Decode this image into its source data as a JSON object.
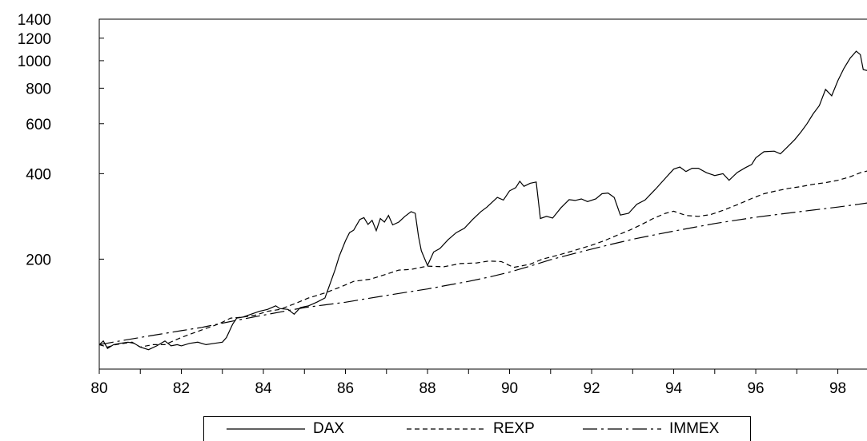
{
  "chart_data": {
    "type": "line",
    "title": "",
    "xlabel": "",
    "ylabel": "",
    "y_scale": "log",
    "xlim": [
      1980,
      1998.75
    ],
    "ylim": [
      82,
      1400
    ],
    "x_tick_labels": [
      "80",
      "82",
      "84",
      "86",
      "88",
      "90",
      "92",
      "94",
      "96",
      "98"
    ],
    "x_tick_values": [
      1980,
      1982,
      1984,
      1986,
      1988,
      1990,
      1992,
      1994,
      1996,
      1998
    ],
    "y_tick_labels": [
      "200",
      "400",
      "600",
      "800",
      "1000",
      "1200",
      "1400"
    ],
    "y_tick_values": [
      200,
      400,
      600,
      800,
      1000,
      1200,
      1400
    ],
    "legend_position": "bottom",
    "series": [
      {
        "name": "DAX",
        "style": "solid",
        "points": [
          [
            1980.0,
            100
          ],
          [
            1980.1,
            103
          ],
          [
            1980.2,
            97
          ],
          [
            1980.35,
            100
          ],
          [
            1980.5,
            101
          ],
          [
            1980.7,
            102
          ],
          [
            1980.85,
            101
          ],
          [
            1981.0,
            98
          ],
          [
            1981.2,
            96
          ],
          [
            1981.4,
            99
          ],
          [
            1981.6,
            103
          ],
          [
            1981.75,
            99
          ],
          [
            1981.9,
            100
          ],
          [
            1982.0,
            99
          ],
          [
            1982.2,
            101
          ],
          [
            1982.4,
            102
          ],
          [
            1982.6,
            100
          ],
          [
            1982.8,
            101
          ],
          [
            1983.0,
            102
          ],
          [
            1983.1,
            106
          ],
          [
            1983.25,
            118
          ],
          [
            1983.35,
            124
          ],
          [
            1983.5,
            125
          ],
          [
            1983.7,
            128
          ],
          [
            1983.9,
            131
          ],
          [
            1984.1,
            133
          ],
          [
            1984.3,
            137
          ],
          [
            1984.4,
            134
          ],
          [
            1984.6,
            133
          ],
          [
            1984.75,
            128
          ],
          [
            1984.9,
            135
          ],
          [
            1985.1,
            137
          ],
          [
            1985.3,
            141
          ],
          [
            1985.5,
            146
          ],
          [
            1985.6,
            160
          ],
          [
            1985.75,
            184
          ],
          [
            1985.85,
            205
          ],
          [
            1986.0,
            232
          ],
          [
            1986.1,
            248
          ],
          [
            1986.2,
            253
          ],
          [
            1986.35,
            276
          ],
          [
            1986.45,
            280
          ],
          [
            1986.55,
            265
          ],
          [
            1986.65,
            274
          ],
          [
            1986.75,
            252
          ],
          [
            1986.85,
            278
          ],
          [
            1986.95,
            270
          ],
          [
            1987.05,
            285
          ],
          [
            1987.15,
            264
          ],
          [
            1987.3,
            270
          ],
          [
            1987.45,
            283
          ],
          [
            1987.6,
            294
          ],
          [
            1987.7,
            290
          ],
          [
            1987.78,
            240
          ],
          [
            1987.85,
            214
          ],
          [
            1988.0,
            190
          ],
          [
            1988.15,
            212
          ],
          [
            1988.3,
            218
          ],
          [
            1988.5,
            234
          ],
          [
            1988.7,
            248
          ],
          [
            1988.9,
            257
          ],
          [
            1989.1,
            276
          ],
          [
            1989.3,
            294
          ],
          [
            1989.45,
            305
          ],
          [
            1989.55,
            315
          ],
          [
            1989.7,
            330
          ],
          [
            1989.85,
            323
          ],
          [
            1990.0,
            348
          ],
          [
            1990.15,
            357
          ],
          [
            1990.25,
            376
          ],
          [
            1990.35,
            361
          ],
          [
            1990.5,
            370
          ],
          [
            1990.65,
            374
          ],
          [
            1990.75,
            278
          ],
          [
            1990.9,
            283
          ],
          [
            1991.05,
            279
          ],
          [
            1991.25,
            303
          ],
          [
            1991.45,
            324
          ],
          [
            1991.6,
            322
          ],
          [
            1991.75,
            326
          ],
          [
            1991.9,
            319
          ],
          [
            1992.1,
            326
          ],
          [
            1992.25,
            340
          ],
          [
            1992.4,
            342
          ],
          [
            1992.55,
            330
          ],
          [
            1992.7,
            286
          ],
          [
            1992.9,
            290
          ],
          [
            1993.1,
            312
          ],
          [
            1993.3,
            323
          ],
          [
            1993.55,
            352
          ],
          [
            1993.8,
            386
          ],
          [
            1994.0,
            415
          ],
          [
            1994.15,
            422
          ],
          [
            1994.3,
            407
          ],
          [
            1994.45,
            418
          ],
          [
            1994.6,
            418
          ],
          [
            1994.8,
            403
          ],
          [
            1995.0,
            394
          ],
          [
            1995.2,
            400
          ],
          [
            1995.35,
            379
          ],
          [
            1995.55,
            404
          ],
          [
            1995.75,
            420
          ],
          [
            1995.9,
            431
          ],
          [
            1996.0,
            455
          ],
          [
            1996.2,
            478
          ],
          [
            1996.45,
            480
          ],
          [
            1996.6,
            470
          ],
          [
            1996.75,
            493
          ],
          [
            1996.95,
            527
          ],
          [
            1997.1,
            560
          ],
          [
            1997.25,
            600
          ],
          [
            1997.4,
            650
          ],
          [
            1997.55,
            695
          ],
          [
            1997.7,
            792
          ],
          [
            1997.85,
            752
          ],
          [
            1998.0,
            850
          ],
          [
            1998.15,
            940
          ],
          [
            1998.3,
            1020
          ],
          [
            1998.45,
            1080
          ],
          [
            1998.55,
            1050
          ],
          [
            1998.62,
            930
          ],
          [
            1998.75,
            920
          ]
        ]
      },
      {
        "name": "REXP",
        "style": "dashed",
        "points": [
          [
            1980.0,
            100
          ],
          [
            1980.2,
            98
          ],
          [
            1980.4,
            100
          ],
          [
            1980.6,
            101
          ],
          [
            1980.8,
            102
          ],
          [
            1981.0,
            98
          ],
          [
            1981.3,
            100
          ],
          [
            1981.6,
            100
          ],
          [
            1981.8,
            103
          ],
          [
            1982.0,
            106
          ],
          [
            1982.3,
            110
          ],
          [
            1982.6,
            114
          ],
          [
            1982.9,
            118
          ],
          [
            1983.2,
            124
          ],
          [
            1983.5,
            125
          ],
          [
            1983.8,
            127
          ],
          [
            1984.1,
            131
          ],
          [
            1984.4,
            133
          ],
          [
            1984.8,
            140
          ],
          [
            1985.1,
            146
          ],
          [
            1985.5,
            152
          ],
          [
            1985.9,
            160
          ],
          [
            1986.2,
            167
          ],
          [
            1986.6,
            170
          ],
          [
            1987.0,
            177
          ],
          [
            1987.3,
            183
          ],
          [
            1987.6,
            184
          ],
          [
            1988.0,
            189
          ],
          [
            1988.4,
            188
          ],
          [
            1988.8,
            193
          ],
          [
            1989.2,
            194
          ],
          [
            1989.5,
            197
          ],
          [
            1989.8,
            196
          ],
          [
            1990.1,
            187
          ],
          [
            1990.5,
            192
          ],
          [
            1990.8,
            200
          ],
          [
            1991.2,
            207
          ],
          [
            1991.6,
            215
          ],
          [
            1992.0,
            224
          ],
          [
            1992.3,
            232
          ],
          [
            1992.6,
            242
          ],
          [
            1992.9,
            252
          ],
          [
            1993.2,
            264
          ],
          [
            1993.5,
            278
          ],
          [
            1993.8,
            290
          ],
          [
            1994.0,
            295
          ],
          [
            1994.3,
            285
          ],
          [
            1994.6,
            283
          ],
          [
            1994.9,
            287
          ],
          [
            1995.2,
            297
          ],
          [
            1995.6,
            313
          ],
          [
            1995.9,
            327
          ],
          [
            1996.2,
            340
          ],
          [
            1996.5,
            348
          ],
          [
            1996.8,
            355
          ],
          [
            1997.1,
            360
          ],
          [
            1997.4,
            367
          ],
          [
            1997.7,
            372
          ],
          [
            1998.0,
            379
          ],
          [
            1998.3,
            390
          ],
          [
            1998.55,
            403
          ],
          [
            1998.75,
            410
          ]
        ]
      },
      {
        "name": "IMMEX",
        "style": "long-dash",
        "points": [
          [
            1980.0,
            100
          ],
          [
            1980.5,
            103
          ],
          [
            1981.0,
            106
          ],
          [
            1981.5,
            109
          ],
          [
            1982.0,
            112
          ],
          [
            1982.5,
            115
          ],
          [
            1983.0,
            119
          ],
          [
            1983.5,
            123
          ],
          [
            1984.0,
            127
          ],
          [
            1984.5,
            131
          ],
          [
            1985.0,
            135
          ],
          [
            1985.5,
            138
          ],
          [
            1986.0,
            141
          ],
          [
            1986.5,
            145
          ],
          [
            1987.0,
            149
          ],
          [
            1987.5,
            153
          ],
          [
            1988.0,
            157
          ],
          [
            1988.5,
            162
          ],
          [
            1989.0,
            167
          ],
          [
            1989.5,
            173
          ],
          [
            1990.0,
            180
          ],
          [
            1990.5,
            189
          ],
          [
            1991.0,
            199
          ],
          [
            1991.5,
            208
          ],
          [
            1992.0,
            217
          ],
          [
            1992.5,
            226
          ],
          [
            1993.0,
            235
          ],
          [
            1993.5,
            243
          ],
          [
            1994.0,
            251
          ],
          [
            1994.5,
            259
          ],
          [
            1995.0,
            267
          ],
          [
            1995.5,
            274
          ],
          [
            1996.0,
            281
          ],
          [
            1996.5,
            287
          ],
          [
            1997.0,
            293
          ],
          [
            1997.5,
            299
          ],
          [
            1998.0,
            305
          ],
          [
            1998.5,
            312
          ],
          [
            1998.75,
            316
          ]
        ]
      }
    ]
  }
}
